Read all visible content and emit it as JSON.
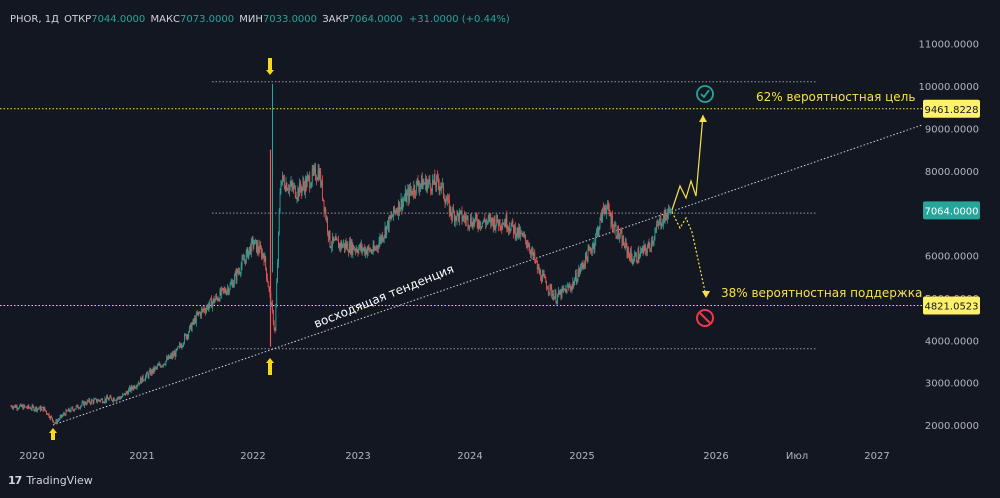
{
  "header": {
    "symbol": "PHOR, 1Д",
    "open_label": "ОТКР",
    "open": "7044.0000",
    "high_label": "МАКС",
    "high": "7073.0000",
    "low_label": "МИН",
    "low": "7033.0000",
    "close_label": "ЗАКР",
    "close": "7064.0000",
    "change": "+31.0000 (+0.44%)"
  },
  "brand": {
    "logo": "17",
    "name": "TradingView"
  },
  "colors": {
    "background": "#131722",
    "up": "#26a69a",
    "down": "#ef5350",
    "text": "#b2b5be",
    "yellow": "#f7e14a",
    "grid_line": "#9598a1",
    "check": "#26a69a",
    "stop": "#f23645",
    "current_price_badge": "#26a69a"
  },
  "chart_data": {
    "type": "candlestick",
    "x_ticks": [
      "2020",
      "2021",
      "2022",
      "2023",
      "2024",
      "2025",
      "2026",
      "Июл",
      "2027"
    ],
    "y_ticks": [
      "11000.0000",
      "10000.0000",
      "9000.0000",
      "8000.0000",
      "6000.0000",
      "5000.0000",
      "4000.0000",
      "3000.0000",
      "2000.0000"
    ],
    "ylim": [
      1700,
      11500
    ],
    "price_line": {
      "label": "7064.0000",
      "value": 7064
    },
    "levels": [
      {
        "label": "9461.8228",
        "value": 9461.8228
      },
      {
        "label": "4821.0523",
        "value": 4821.0523
      }
    ],
    "horizontal_lines": [
      10100,
      7000,
      3800
    ],
    "trendline_label": "восходящая тенденция",
    "annotations": {
      "target": "62% вероятностная цель",
      "support": "38% вероятностная поддержка"
    },
    "price_path": [
      [
        "2019.8",
        2450
      ],
      [
        "2020.0",
        2400
      ],
      [
        "2020.1",
        2380
      ],
      [
        "2020.2",
        2050
      ],
      [
        "2020.3",
        2300
      ],
      [
        "2020.5",
        2550
      ],
      [
        "2020.8",
        2650
      ],
      [
        "2021.0",
        3100
      ],
      [
        "2021.3",
        3700
      ],
      [
        "2021.5",
        4600
      ],
      [
        "2021.8",
        5300
      ],
      [
        "2022.0",
        6300
      ],
      [
        "2022.1",
        6000
      ],
      [
        "2022.2",
        4200
      ],
      [
        "2022.25",
        7800
      ],
      [
        "2022.4",
        7500
      ],
      [
        "2022.6",
        8000
      ],
      [
        "2022.7",
        6300
      ],
      [
        "2022.9",
        6200
      ],
      [
        "2023.1",
        6100
      ],
      [
        "2023.3",
        7100
      ],
      [
        "2023.5",
        7700
      ],
      [
        "2023.7",
        7700
      ],
      [
        "2023.8",
        7000
      ],
      [
        "2024.0",
        6800
      ],
      [
        "2024.3",
        6800
      ],
      [
        "2024.5",
        6300
      ],
      [
        "2024.6",
        5600
      ],
      [
        "2024.75",
        5000
      ],
      [
        "2024.9",
        5300
      ],
      [
        "2025.1",
        6300
      ],
      [
        "2025.2",
        7200
      ],
      [
        "2025.3",
        6600
      ],
      [
        "2025.45",
        5900
      ],
      [
        "2025.6",
        6200
      ],
      [
        "2025.7",
        6800
      ],
      [
        "2025.8",
        7064
      ]
    ]
  }
}
